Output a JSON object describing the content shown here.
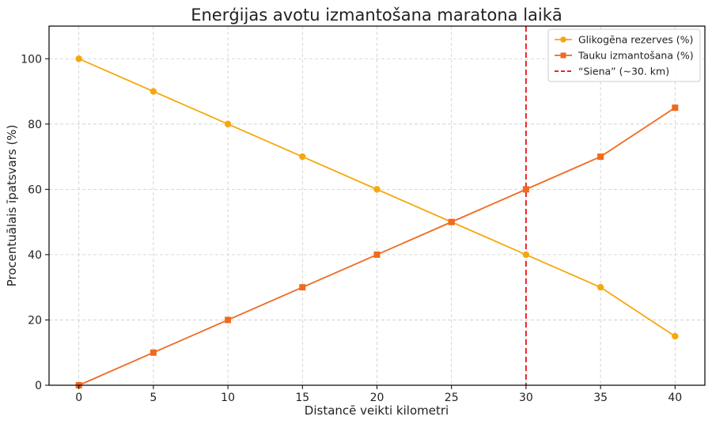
{
  "chart_data": {
    "type": "line",
    "title": "Enerģijas avotu izmantošana maratona laikā",
    "xlabel": "Distancē veikti kilometri",
    "ylabel": "Procentuālais īpatsvars (%)",
    "x": [
      0,
      5,
      10,
      15,
      20,
      25,
      30,
      35,
      40
    ],
    "xlim": [
      -2,
      42
    ],
    "ylim": [
      0,
      110
    ],
    "xticks": [
      0,
      5,
      10,
      15,
      20,
      25,
      30,
      35,
      40
    ],
    "yticks": [
      0,
      20,
      40,
      60,
      80,
      100
    ],
    "grid": true,
    "legend_position": "top-right",
    "series": [
      {
        "name": "Glikogēna rezerves (%)",
        "color": "#f5a80d",
        "marker": "circle",
        "values": [
          100,
          90,
          80,
          70,
          60,
          50,
          40,
          30,
          15
        ]
      },
      {
        "name": "Tauku izmantošana (%)",
        "color": "#ef6a1f",
        "marker": "square",
        "values": [
          0,
          10,
          20,
          30,
          40,
          50,
          60,
          70,
          85
        ]
      }
    ],
    "reference_lines": [
      {
        "name": "“Siena” (~30. km)",
        "x": 30,
        "color": "#e8242a",
        "style": "dashed"
      }
    ]
  }
}
